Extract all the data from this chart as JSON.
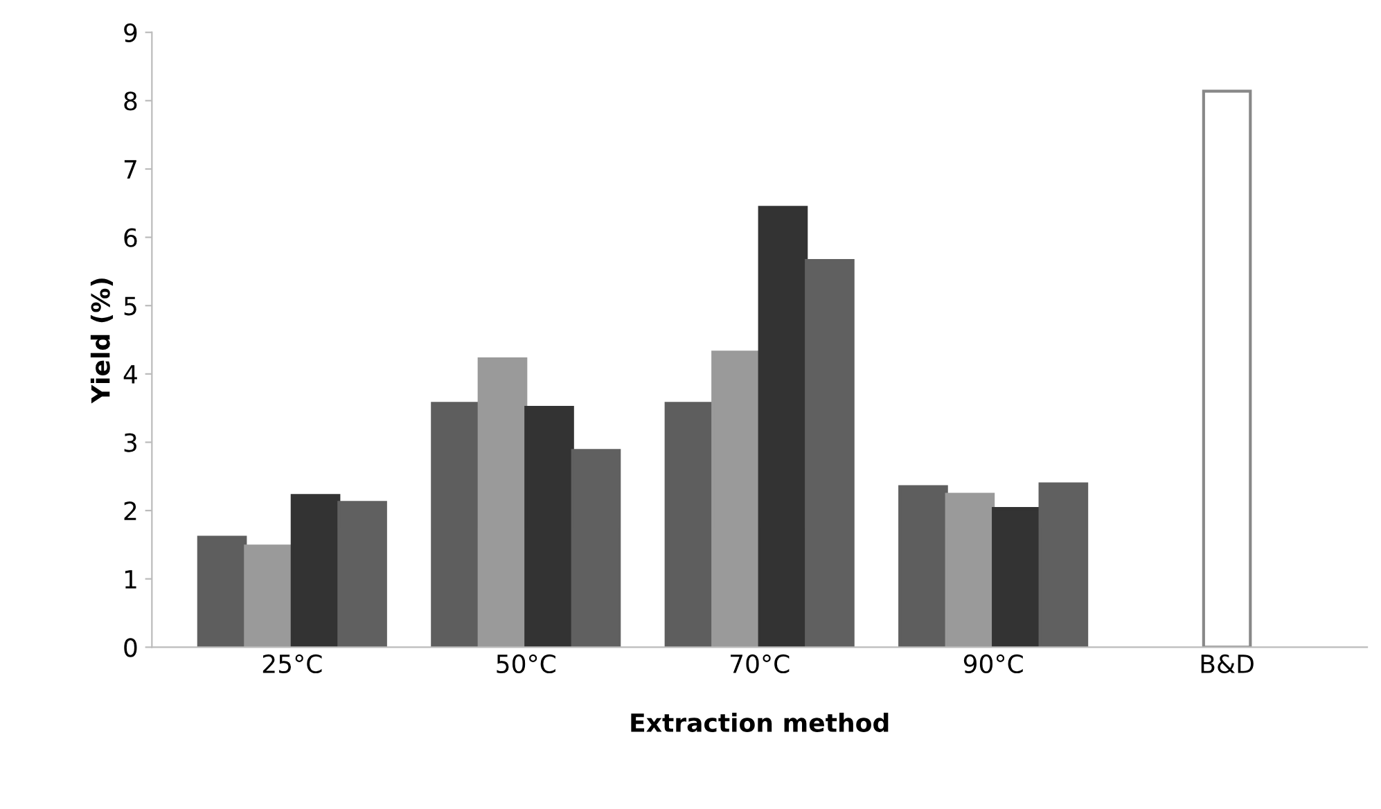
{
  "chart_data": {
    "type": "bar",
    "xlabel": "Extraction method",
    "ylabel": "Yield (%)",
    "categories": [
      "25°C",
      "50°C",
      "70°C",
      "90°C",
      "B&D"
    ],
    "series": [
      {
        "color": "#5e5e5e",
        "values": [
          1.61,
          3.57,
          3.57,
          2.35,
          null
        ]
      },
      {
        "color": "#9a9a9a",
        "values": [
          1.48,
          4.22,
          4.32,
          2.24,
          null
        ]
      },
      {
        "color": "#333333",
        "values": [
          2.22,
          3.51,
          6.44,
          2.03,
          null
        ]
      },
      {
        "color": "#606060",
        "values": [
          2.12,
          2.88,
          5.66,
          2.39,
          null
        ]
      },
      {
        "color": "#ffffff",
        "values": [
          null,
          null,
          null,
          null,
          8.14
        ]
      }
    ],
    "ylim": [
      0,
      9
    ],
    "yticks": [
      0,
      1,
      2,
      3,
      4,
      5,
      6,
      7,
      8,
      9
    ],
    "grid": false,
    "legend": false
  }
}
